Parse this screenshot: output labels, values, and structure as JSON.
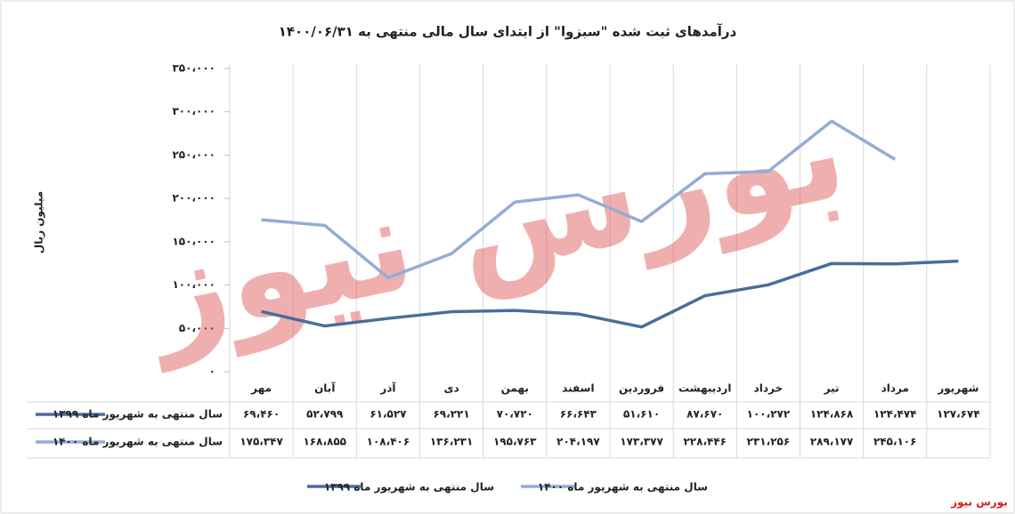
{
  "chart_data": {
    "type": "line",
    "title": "درآمدهای ثبت شده \"سبزوا\" از ابتدای سال مالی منتهی به ۱۴۰۰/۰۶/۳۱",
    "y_label": "میلیون ریال",
    "watermark": "بورس نیوز",
    "source": "بورس نیوز",
    "categories": [
      "مهر",
      "آبان",
      "آذر",
      "دی",
      "بهمن",
      "اسفند",
      "فروردین",
      "اردیبهشت",
      "خرداد",
      "تیر",
      "مرداد",
      "شهریور"
    ],
    "series": [
      {
        "name": "سال منتهی به شهریور ماه ۱۳۹۹",
        "color": "#4a6d9c",
        "values": [
          69460,
          52799,
          61527,
          69221,
          70720,
          66643,
          51610,
          87670,
          100272,
          124868,
          124474,
          127674
        ],
        "value_labels": [
          "۶۹،۴۶۰",
          "۵۲،۷۹۹",
          "۶۱،۵۲۷",
          "۶۹،۲۲۱",
          "۷۰،۷۲۰",
          "۶۶،۶۴۳",
          "۵۱،۶۱۰",
          "۸۷،۶۷۰",
          "۱۰۰،۲۷۲",
          "۱۲۴،۸۶۸",
          "۱۲۴،۴۷۴",
          "۱۲۷،۶۷۴"
        ]
      },
      {
        "name": "سال منتهی به شهریور ماه ۱۴۰۰",
        "color": "#94acd6",
        "values": [
          175347,
          168855,
          108406,
          136231,
          195763,
          204197,
          173377,
          228446,
          231256,
          289177,
          245106,
          null
        ],
        "value_labels": [
          "۱۷۵،۳۴۷",
          "۱۶۸،۸۵۵",
          "۱۰۸،۴۰۶",
          "۱۳۶،۲۳۱",
          "۱۹۵،۷۶۳",
          "۲۰۴،۱۹۷",
          "۱۷۳،۳۷۷",
          "۲۲۸،۴۴۶",
          "۲۳۱،۲۵۶",
          "۲۸۹،۱۷۷",
          "۲۴۵،۱۰۶",
          null
        ]
      }
    ],
    "ylim": [
      0,
      350000
    ],
    "yticks": [
      {
        "value": 0,
        "label": "۰"
      },
      {
        "value": 50000,
        "label": "۵۰،۰۰۰"
      },
      {
        "value": 100000,
        "label": "۱۰۰،۰۰۰"
      },
      {
        "value": 150000,
        "label": "۱۵۰،۰۰۰"
      },
      {
        "value": 200000,
        "label": "۲۰۰،۰۰۰"
      },
      {
        "value": 250000,
        "label": "۲۵۰،۰۰۰"
      },
      {
        "value": 300000,
        "label": "۳۰۰،۰۰۰"
      },
      {
        "value": 350000,
        "label": "۳۵۰،۰۰۰"
      }
    ],
    "grid": false
  }
}
